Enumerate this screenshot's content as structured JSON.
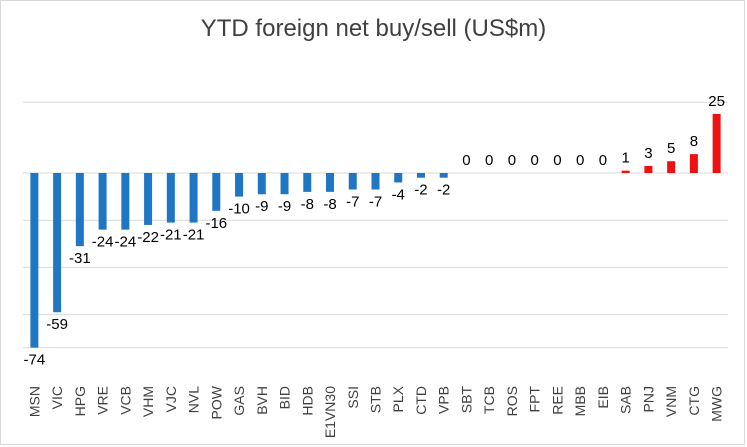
{
  "chart_data": {
    "type": "bar",
    "title": "YTD foreign net buy/sell  (US$m)",
    "xlabel": "",
    "ylabel": "",
    "ylim": [
      -74,
      30
    ],
    "grid": true,
    "categories": [
      "MSN",
      "VIC",
      "HPG",
      "VRE",
      "VCB",
      "VHM",
      "VJC",
      "NVL",
      "POW",
      "GAS",
      "BVH",
      "BID",
      "HDB",
      "E1VN30",
      "SSI",
      "STB",
      "PLX",
      "CTD",
      "VPB",
      "SBT",
      "TCB",
      "ROS",
      "FPT",
      "REE",
      "MBB",
      "EIB",
      "SAB",
      "PNJ",
      "VNM",
      "CTG",
      "MWG"
    ],
    "values": [
      -74,
      -59,
      -31,
      -24,
      -24,
      -22,
      -21,
      -21,
      -16,
      -10,
      -9,
      -9,
      -8,
      -8,
      -7,
      -7,
      -4,
      -2,
      -2,
      0,
      0,
      0,
      0,
      0,
      0,
      0,
      1,
      3,
      5,
      8,
      25
    ],
    "colors": {
      "negative": "#1f77c4",
      "positive": "#ee1111",
      "grid": "#d9d9d9"
    }
  }
}
